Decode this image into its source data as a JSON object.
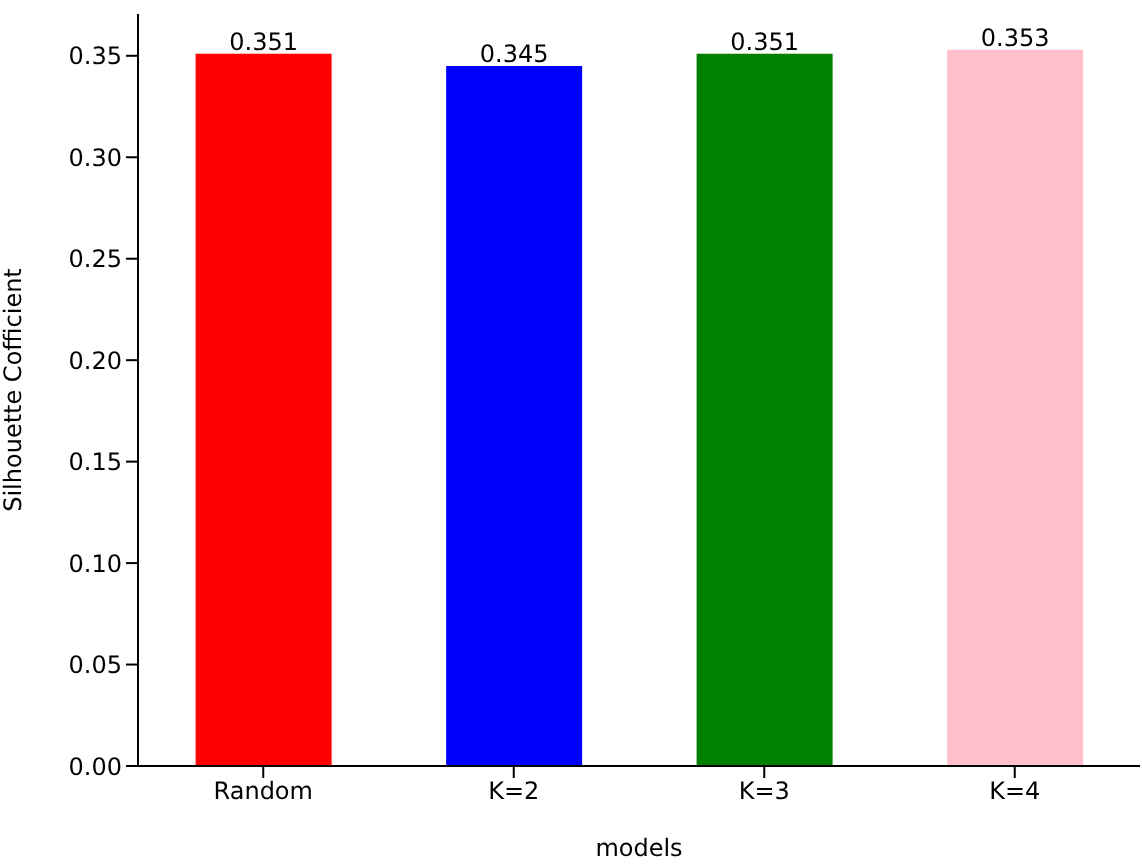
{
  "chart_data": {
    "type": "bar",
    "xlabel": "models",
    "ylabel": "Silhouette Cofficient",
    "categories": [
      "Random",
      "K=2",
      "K=3",
      "K=4"
    ],
    "values": [
      0.351,
      0.345,
      0.351,
      0.353
    ],
    "colors": [
      "#ff0000",
      "#0000ff",
      "#008000",
      "#ffc0cb"
    ],
    "ylim": [
      0,
      0.3706
    ],
    "yticks": [
      {
        "value": 0,
        "label": "0.00"
      },
      {
        "value": 0.05,
        "label": "0.05"
      },
      {
        "value": 0.1,
        "label": "0.10"
      },
      {
        "value": 0.15,
        "label": "0.15"
      },
      {
        "value": 0.2,
        "label": "0.20"
      },
      {
        "value": 0.25,
        "label": "0.25"
      },
      {
        "value": 0.3,
        "label": "0.30"
      },
      {
        "value": 0.35,
        "label": "0.35"
      }
    ],
    "data_labels": true,
    "grid": false,
    "legend": false
  }
}
